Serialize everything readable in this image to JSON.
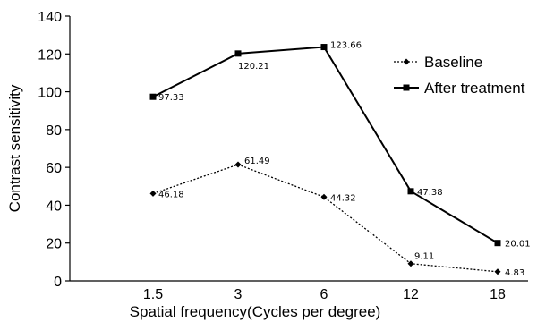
{
  "chart_data": {
    "type": "line",
    "categories": [
      "1.5",
      "3",
      "6",
      "12",
      "18"
    ],
    "xlabel": "Spatial frequency(Cycles per degree)",
    "ylabel": "Contrast sensitivity",
    "ylim": [
      0,
      140
    ],
    "yticks": [
      "0",
      "20",
      "40",
      "60",
      "80",
      "100",
      "120",
      "140"
    ],
    "grid": false,
    "legend_position": "right",
    "series": [
      {
        "name": "Baseline",
        "values": [
          46.18,
          61.49,
          44.32,
          9.11,
          4.83
        ],
        "labels": [
          "46.18",
          "61.49",
          "44.32",
          "9.11",
          "4.83"
        ],
        "line_style": "dotted",
        "marker": "diamond",
        "color": "#000000"
      },
      {
        "name": "After treatment",
        "values": [
          97.33,
          120.21,
          123.66,
          47.38,
          20.01
        ],
        "labels": [
          "97.33",
          "120.21",
          "123.66",
          "47.38",
          "20.01"
        ],
        "line_style": "solid",
        "marker": "square",
        "color": "#000000"
      }
    ]
  }
}
